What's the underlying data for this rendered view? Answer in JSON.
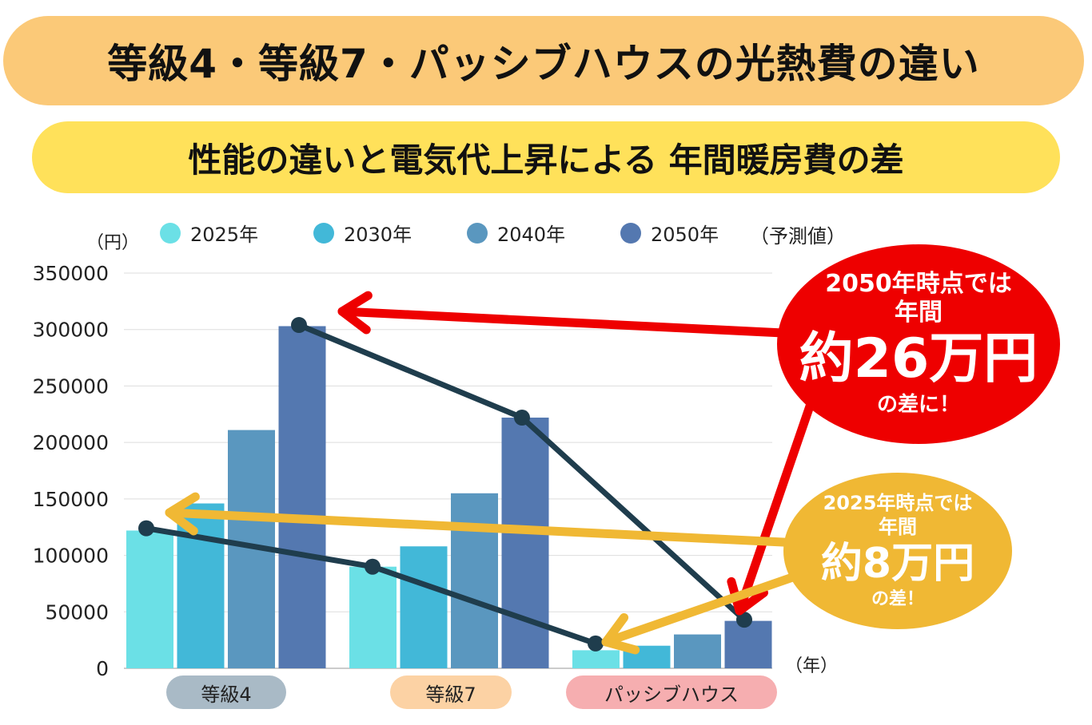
{
  "title": "等級4・等級7・パッシブハウスの光熱費の違い",
  "subtitle": "性能の違いと電気代上昇による 年間暖房費の差",
  "y_unit": "（円）",
  "x_unit": "（年）",
  "legend_note": "（予測値）",
  "colors": {
    "title_bg": "#fbc978",
    "subtitle_bg": "#ffe15a",
    "connector_line": "#1f3d4d",
    "red_arrow": "#ee0000",
    "yellow_arrow": "#f0b834"
  },
  "chart_data": {
    "type": "bar",
    "categories": [
      "等級4",
      "等級7",
      "パッシブハウス"
    ],
    "category_label_colors": [
      "#a9bac6",
      "#fcd2a4",
      "#f6aeb0"
    ],
    "series": [
      {
        "name": "2025年",
        "color": "#6be0e6",
        "values": [
          122000,
          90000,
          16000
        ]
      },
      {
        "name": "2030年",
        "color": "#42b8d8",
        "values": [
          146000,
          108000,
          20000
        ]
      },
      {
        "name": "2040年",
        "color": "#5a97bf",
        "values": [
          211000,
          155000,
          30000
        ]
      },
      {
        "name": "2050年",
        "color": "#5478b0",
        "values": [
          303000,
          222000,
          42000
        ]
      }
    ],
    "ylim": [
      0,
      350000
    ],
    "yticks": [
      "0",
      "50000",
      "100000",
      "150000",
      "200000",
      "250000",
      "300000",
      "350000"
    ],
    "grid": true,
    "legend_position": "top",
    "connector_lines": [
      {
        "series": "2025年",
        "points": [
          124000,
          90000,
          22000
        ]
      },
      {
        "series": "2050年",
        "points": [
          304000,
          222000,
          43000
        ]
      }
    ]
  },
  "callouts": {
    "red": {
      "line1": "2050年時点では",
      "line2": "年間",
      "big": "約26万円",
      "line3": "の差に！"
    },
    "yellow": {
      "line1": "2025年時点では",
      "line2": "年間",
      "big": "約8万円",
      "line3": "の差！"
    }
  }
}
